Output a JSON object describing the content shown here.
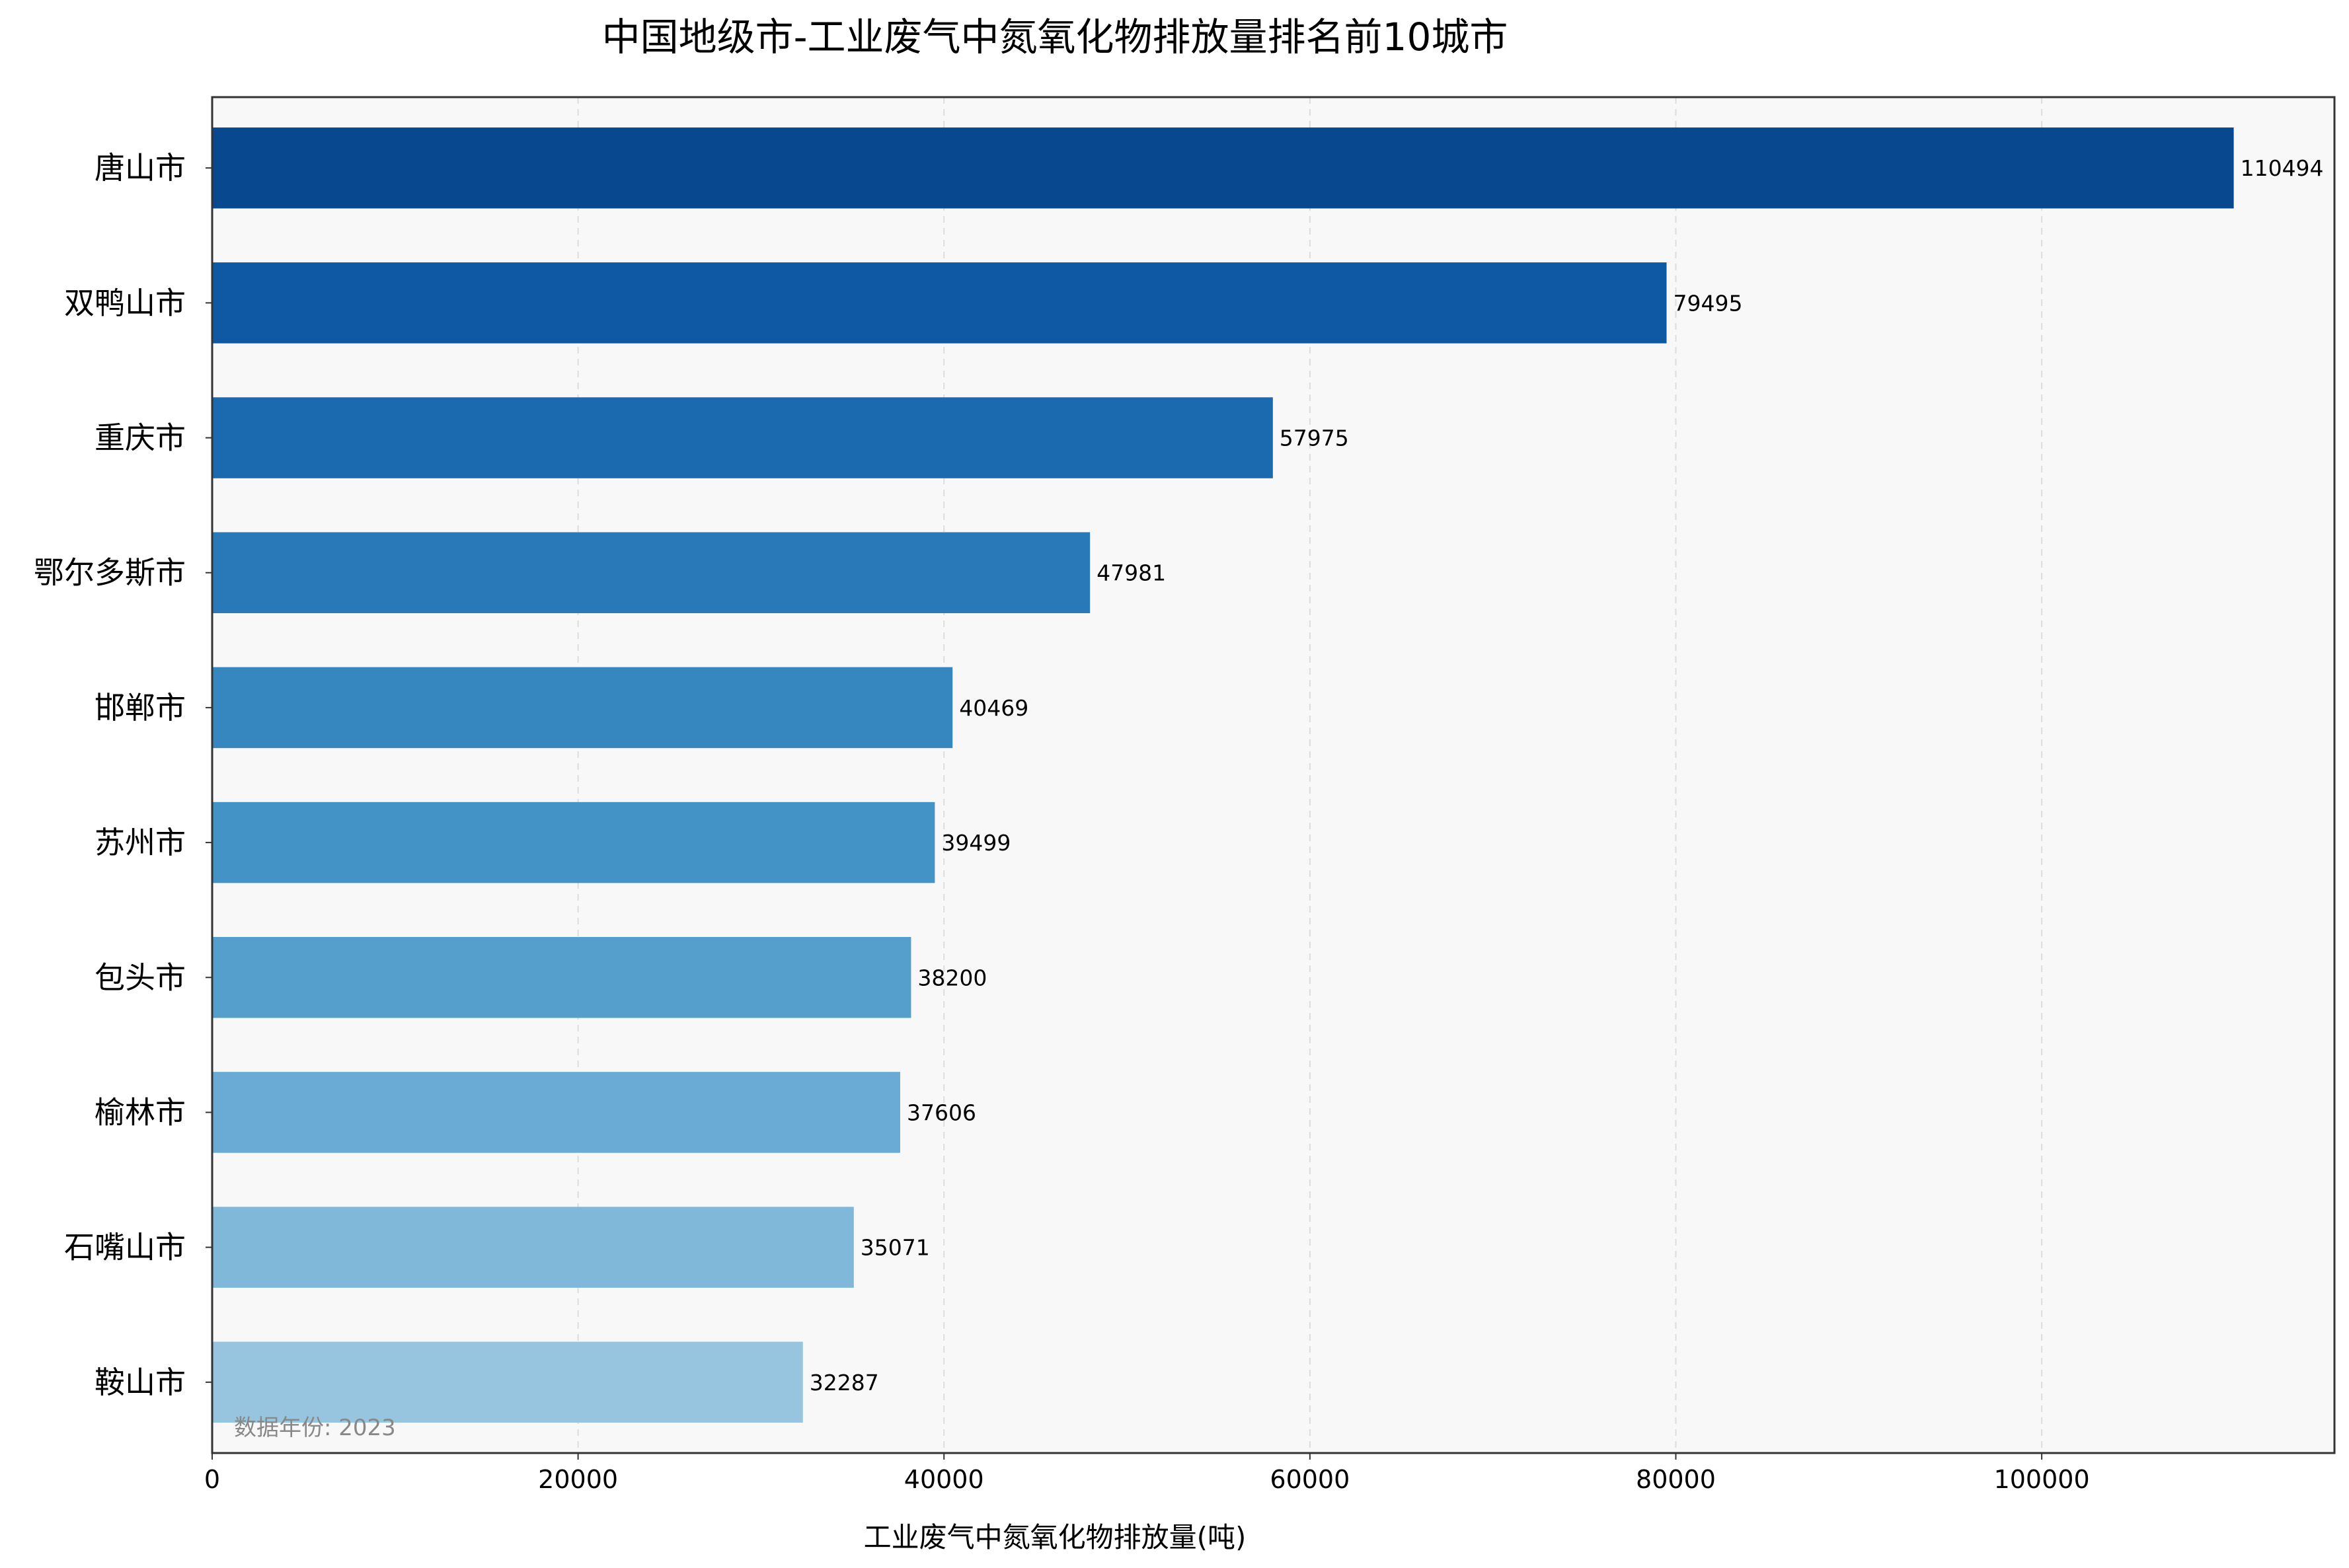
{
  "chart_data": {
    "type": "bar",
    "orientation": "horizontal",
    "title": "中国地级市-工业废气中氮氧化物排放量排名前10城市",
    "xlabel": "工业废气中氮氧化物排放量(吨)",
    "ylabel": "",
    "categories": [
      "唐山市",
      "双鸭山市",
      "重庆市",
      "鄂尔多斯市",
      "邯郸市",
      "苏州市",
      "包头市",
      "榆林市",
      "石嘴山市",
      "鞍山市"
    ],
    "values": [
      110494,
      79495,
      57975,
      47981,
      40469,
      39499,
      38200,
      37606,
      35071,
      32287
    ],
    "xlim": [
      0,
      116000
    ],
    "xticks": [
      0,
      20000,
      40000,
      60000,
      80000,
      100000
    ],
    "grid": "x-dashed",
    "annotation": "数据年份: 2023",
    "colors": {
      "plot_background": "#f8f8f8",
      "bars": [
        "#08488e",
        "#0f58a3",
        "#1b69af",
        "#2979b9",
        "#3686c0",
        "#4493c7",
        "#559fcd",
        "#69abd4",
        "#80b8da",
        "#97c5e0"
      ],
      "annotation_text": "#888888",
      "grid": "#dddddd"
    }
  }
}
